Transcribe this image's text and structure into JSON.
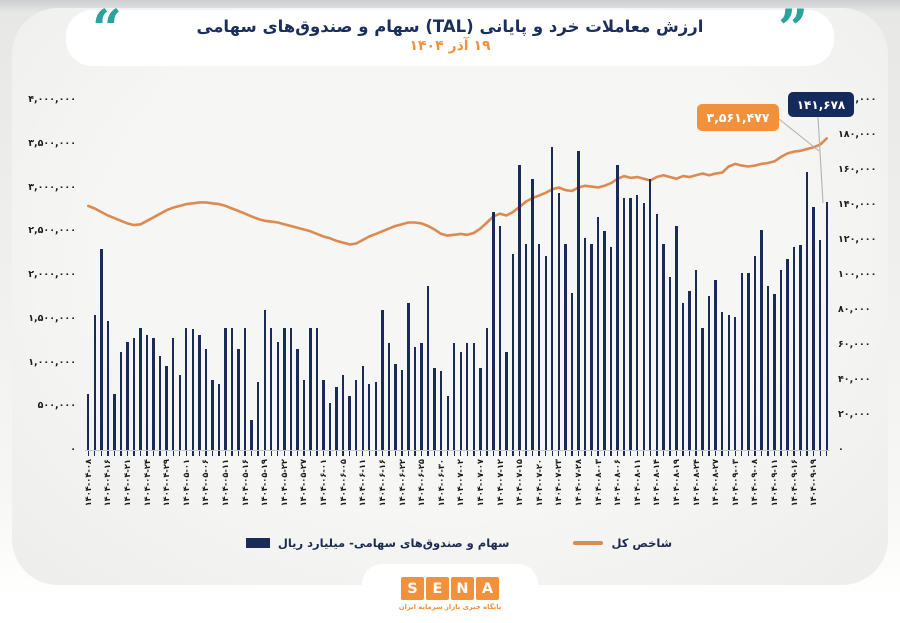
{
  "header": {
    "title": "ارزش معاملات خرد و پایانی (TAL) سهام و صندوق‌های سهامی",
    "subtitle": "۱۹ آذر ۱۴۰۴"
  },
  "callouts": {
    "index_value": "۳,۵۶۱,۴۷۷",
    "trade_value": "۱۴۱,۶۷۸"
  },
  "legend": {
    "bars_label": "سهام و صندوق‌های سهامی- میلیارد ریال",
    "line_label": "شاخص کل"
  },
  "logo": {
    "letters": [
      "S",
      "E",
      "N",
      "A"
    ],
    "tagline": "پایگاه خبری بازار سرمایه ایران"
  },
  "colors": {
    "bar": "#1a2b57",
    "line": "#dd8a50",
    "title": "#1b2f5e",
    "subtitle": "#f0923f",
    "teal_quote": "#2aa49a",
    "callout_orange_bg": "#ef913d",
    "callout_navy_bg": "#142a5c",
    "connector": "#b3b3b1"
  },
  "chart_data": {
    "type": "bar+line",
    "title": "ارزش معاملات خرد و پایانی (TAL) سهام و صندوق‌های سهامی - ۱۹ آذر ۱۴۰۴",
    "label_every": 3,
    "categories": [
      "۱۴۰۴-۰۴-۰۸",
      "۱۴۰۴-۰۴-۱۶",
      "۱۴۰۴-۰۴-۲۱",
      "۱۴۰۴-۰۴-۲۴",
      "۱۴۰۴-۰۴-۲۹",
      "۱۴۰۴-۰۵-۰۱",
      "۱۴۰۴-۰۵-۰۶",
      "۱۴۰۴-۰۵-۱۱",
      "۱۴۰۴-۰۵-۱۶",
      "۱۴۰۴-۰۵-۱۹",
      "۱۴۰۴-۰۵-۲۲",
      "۱۴۰۴-۰۵-۲۷",
      "۱۴۰۴-۰۶-۰۱",
      "۱۴۰۴-۰۶-۰۵",
      "۱۴۰۴-۰۶-۱۱",
      "۱۴۰۴-۰۶-۱۶",
      "۱۴۰۴-۰۶-۲۲",
      "۱۴۰۴-۰۶-۲۵",
      "۱۴۰۴-۰۶-۳۰",
      "۱۴۰۴-۰۷-۰۲",
      "۱۴۰۴-۰۷-۰۷",
      "۱۴۰۴-۰۷-۱۲",
      "۱۴۰۴-۰۷-۱۵",
      "۱۴۰۴-۰۷-۲۰",
      "۱۴۰۴-۰۷-۲۳",
      "۱۴۰۴-۰۷-۲۸",
      "۱۴۰۴-۰۸-۰۳",
      "۱۴۰۴-۰۸-۰۶",
      "۱۴۰۴-۰۸-۱۱",
      "۱۴۰۴-۰۸-۱۴",
      "۱۴۰۴-۰۸-۱۹",
      "۱۴۰۴-۰۸-۲۴",
      "۱۴۰۴-۰۸-۲۷",
      "۱۴۰۴-۰۹-۰۳",
      "۱۴۰۴-۰۹-۰۸",
      "۱۴۰۴-۰۹-۱۱",
      "۱۴۰۴-۰۹-۱۶",
      "۱۴۰۴-۰۹-۱۹"
    ],
    "bars": {
      "name": "سهام و صندوق‌های سهامی- میلیارد ریال",
      "axis": "right",
      "last_value": 141678,
      "values": [
        32000,
        77000,
        115000,
        74000,
        32000,
        56000,
        62000,
        64000,
        70000,
        66000,
        64000,
        54000,
        48000,
        64000,
        43000,
        70000,
        69000,
        66000,
        58000,
        40000,
        38000,
        70000,
        70000,
        58000,
        70000,
        17000,
        39000,
        80000,
        70000,
        62000,
        70000,
        70000,
        58000,
        40000,
        70000,
        70000,
        40000,
        27000,
        36000,
        43000,
        31000,
        40000,
        48000,
        38000,
        39000,
        80000,
        61000,
        49000,
        46000,
        84000,
        59000,
        61000,
        94000,
        47000,
        45000,
        31000,
        61000,
        56000,
        61000,
        61000,
        47000,
        70000,
        136000,
        128000,
        56000,
        112000,
        163000,
        118000,
        155000,
        118000,
        111000,
        173000,
        147000,
        118000,
        90000,
        171000,
        121000,
        118000,
        133000,
        125000,
        116000,
        163000,
        144000,
        144000,
        146000,
        141000,
        155000,
        135000,
        118000,
        99000,
        128000,
        84000,
        91000,
        103000,
        70000,
        88000,
        97000,
        79000,
        77000,
        76000,
        101000,
        101000,
        111000,
        126000,
        94000,
        89000,
        103000,
        109000,
        116000,
        117000,
        159000,
        139000,
        120000,
        141678
      ]
    },
    "line": {
      "name": "شاخص کل",
      "axis": "left",
      "last_value": 3561477,
      "values": [
        2790000,
        2760000,
        2720000,
        2680000,
        2650000,
        2620000,
        2590000,
        2570000,
        2580000,
        2620000,
        2660000,
        2700000,
        2740000,
        2770000,
        2790000,
        2810000,
        2820000,
        2830000,
        2830000,
        2820000,
        2810000,
        2790000,
        2760000,
        2730000,
        2700000,
        2670000,
        2640000,
        2620000,
        2610000,
        2600000,
        2580000,
        2560000,
        2540000,
        2520000,
        2500000,
        2470000,
        2440000,
        2420000,
        2390000,
        2370000,
        2350000,
        2360000,
        2400000,
        2440000,
        2470000,
        2500000,
        2530000,
        2560000,
        2580000,
        2600000,
        2600000,
        2590000,
        2560000,
        2520000,
        2470000,
        2450000,
        2460000,
        2470000,
        2460000,
        2480000,
        2530000,
        2600000,
        2670000,
        2700000,
        2680000,
        2720000,
        2780000,
        2840000,
        2880000,
        2910000,
        2940000,
        2980000,
        3000000,
        2970000,
        2960000,
        3000000,
        3020000,
        3010000,
        3000000,
        3020000,
        3050000,
        3100000,
        3130000,
        3110000,
        3120000,
        3100000,
        3080000,
        3120000,
        3140000,
        3120000,
        3100000,
        3130000,
        3120000,
        3140000,
        3160000,
        3140000,
        3160000,
        3170000,
        3240000,
        3270000,
        3250000,
        3240000,
        3250000,
        3270000,
        3280000,
        3300000,
        3350000,
        3390000,
        3410000,
        3420000,
        3440000,
        3460000,
        3490000,
        3561477
      ]
    },
    "left_axis": {
      "range": [
        0,
        4000000
      ],
      "ticks": [
        "۴,۰۰۰,۰۰۰",
        "۳,۵۰۰,۰۰۰",
        "۳,۰۰۰,۰۰۰",
        "۲,۵۰۰,۰۰۰",
        "۲,۰۰۰,۰۰۰",
        "۱,۵۰۰,۰۰۰",
        "۱,۰۰۰,۰۰۰",
        "۵۰۰,۰۰۰",
        "۰"
      ]
    },
    "right_axis": {
      "range": [
        0,
        200000
      ],
      "ticks": [
        "۲۰۰,۰۰۰",
        "۱۸۰,۰۰۰",
        "۱۶۰,۰۰۰",
        "۱۴۰,۰۰۰",
        "۱۲۰,۰۰۰",
        "۱۰۰,۰۰۰",
        "۸۰,۰۰۰",
        "۶۰,۰۰۰",
        "۴۰,۰۰۰",
        "۲۰,۰۰۰",
        "۰"
      ]
    },
    "grid": false,
    "legend_position": "bottom"
  }
}
